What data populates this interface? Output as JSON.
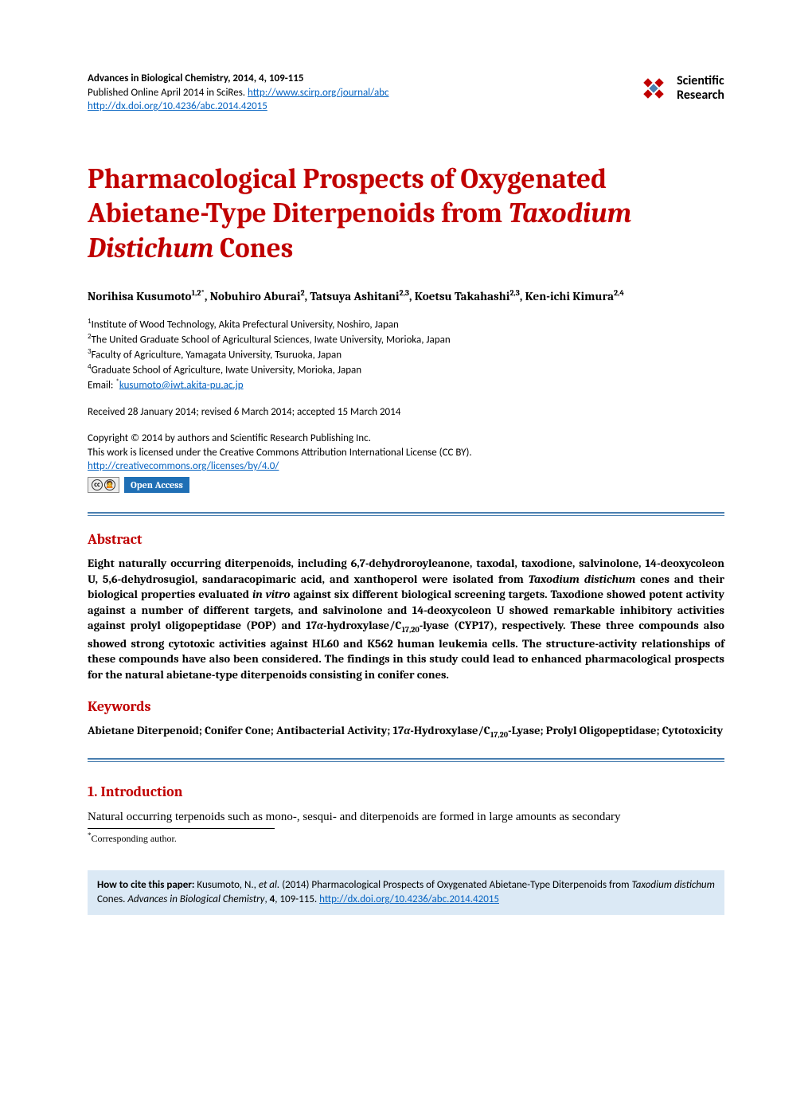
{
  "header": {
    "journal_line": "Advances in Biological Chemistry, 2014, 4, 109-115",
    "published_prefix": "Published Online April 2014 in SciRes. ",
    "journal_url": "http://www.scirp.org/journal/abc",
    "doi_url": "http://dx.doi.org/10.4236/abc.2014.42015",
    "logo_line1": "Scientific",
    "logo_line2": "Research"
  },
  "title_parts": {
    "p1": "Pharmacological Prospects of Oxygenated Abietane-Type Diterpenoids from ",
    "p2_italic": "Taxodium Distichum",
    "p3": " Cones"
  },
  "authors_html": "Norihisa Kusumoto<span class='sup-auth'>1,2*</span>, Nobuhiro Aburai<span class='sup-auth'>2</span>, Tatsuya Ashitani<span class='sup-auth'>2,3</span>, Koetsu Takahashi<span class='sup-auth'>2,3</span>, Ken-ichi Kimura<span class='sup-auth'>2,4</span>",
  "affiliations": {
    "a1": "Institute of Wood Technology, Akita Prefectural University, Noshiro, Japan",
    "a2": "The United Graduate School of Agricultural Sciences, Iwate University, Morioka, Japan",
    "a3": "Faculty of Agriculture, Yamagata University, Tsuruoka, Japan",
    "a4": "Graduate School of Agriculture, Iwate University, Morioka, Japan",
    "email_label": "Email: ",
    "email_star": "*",
    "email": "kusumoto@iwt.akita-pu.ac.jp"
  },
  "dates": "Received 28 January 2014; revised 6 March 2014; accepted 15 March 2014",
  "copyright": {
    "l1": "Copyright © 2014 by authors and Scientific Research Publishing Inc.",
    "l2": "This work is licensed under the Creative Commons Attribution International License (CC BY).",
    "cc_url": "http://creativecommons.org/licenses/by/4.0/",
    "open_access": "Open Access"
  },
  "abstract": {
    "head": "Abstract",
    "body_parts": {
      "p1": "Eight naturally occurring diterpenoids, including 6,7-dehydroroyleanone, taxodal, taxodione, salvinolone, 14-deoxycoleon U, 5,6-dehydrosugiol, sandaracopimaric acid, and xanthoperol were isolated from ",
      "p2_italic": "Taxodium distichum",
      "p3": " cones and their biological properties evaluated ",
      "p4_italic": "in vitro",
      "p5": " against six different biological screening targets. Taxodione showed potent activity against a number of different targets, and salvinolone and 14-deoxycoleon U showed remarkable inhibitory activities against prolyl oligopeptidase (POP) and 17",
      "p6_italic": "α",
      "p7": "-hydroxylase/C",
      "p8_sub": "17,20",
      "p9": "-lyase (CYP17), respectively. These three compounds also showed strong cytotoxic activities against HL60 and K562 human leukemia cells. The structure-activity relationships of these compounds have also been considered. The findings in this study could lead to enhanced pharmacological prospects for the natural abietane-type diterpenoids consisting in conifer cones."
    }
  },
  "keywords": {
    "head": "Keywords",
    "parts": {
      "k1": "Abietane Diterpenoid; Conifer Cone; Antibacterial Activity; 17",
      "k2_italic": "α",
      "k3": "-Hydroxylase/C",
      "k4_sub": "17,20",
      "k5": "-Lyase; Prolyl Oligopeptidase; Cytotoxicity"
    }
  },
  "intro": {
    "head": "1. Introduction",
    "body": "Natural occurring terpenoids such as mono-, sesqui- and diterpenoids are formed in large amounts as secondary"
  },
  "footnote": "Corresponding author.",
  "cite": {
    "label": "How to cite this paper:",
    "p1": " Kusumoto, N., ",
    "p2_italic": "et al.",
    "p3": " (2014) Pharmacological Prospects of Oxygenated Abietane-Type Diterpenoids from ",
    "p4_italic": "Taxodium distichum",
    "p5": " Cones. ",
    "p6_italic": "Advances in Biological Chemistry",
    "p7": ", ",
    "p8_bold": "4",
    "p9": ", 109-115. ",
    "url": "http://dx.doi.org/10.4236/abc.2014.42015"
  },
  "colors": {
    "heading_red": "#c00000",
    "link_blue": "#0563c1",
    "rule_blue": "#4a7fb0",
    "cite_bg": "#dbe9f5",
    "open_access_bg": "#1f6fb5"
  }
}
